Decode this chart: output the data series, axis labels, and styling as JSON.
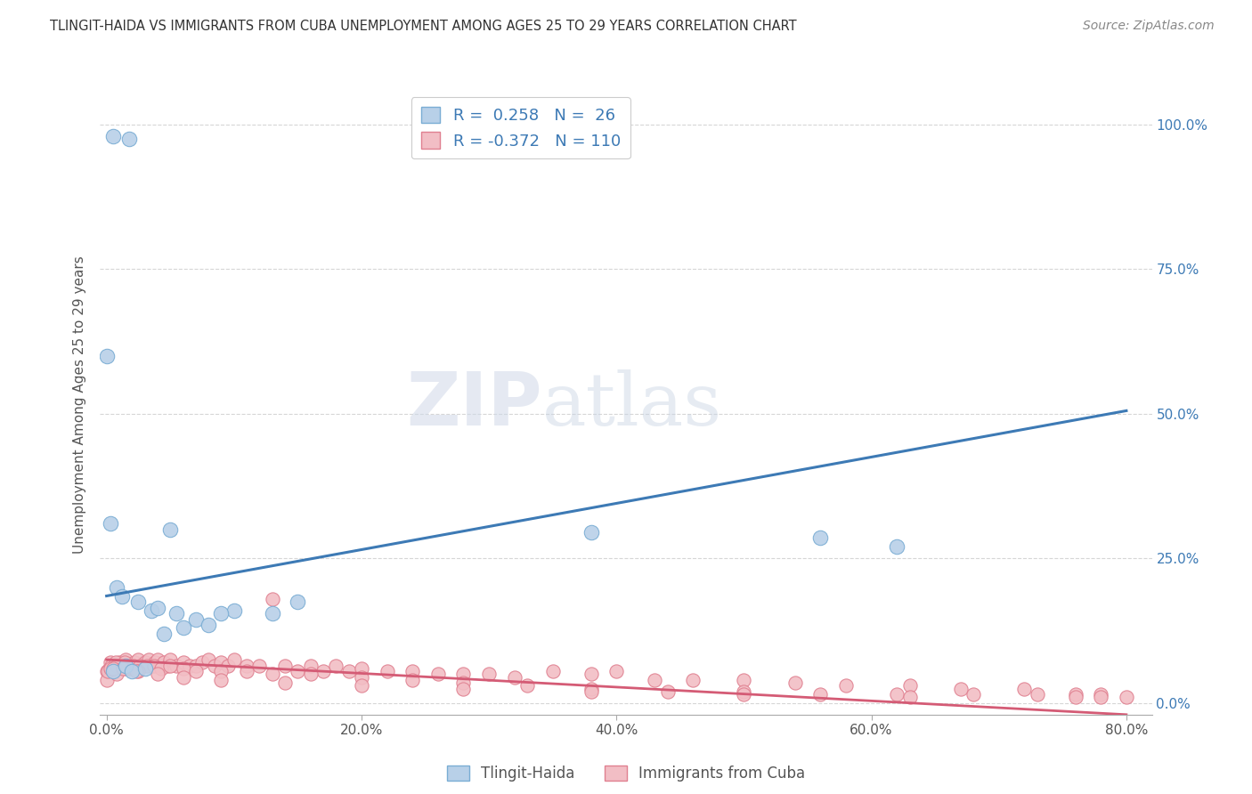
{
  "title": "TLINGIT-HAIDA VS IMMIGRANTS FROM CUBA UNEMPLOYMENT AMONG AGES 25 TO 29 YEARS CORRELATION CHART",
  "source": "Source: ZipAtlas.com",
  "ylabel": "Unemployment Among Ages 25 to 29 years",
  "xlim": [
    -0.005,
    0.82
  ],
  "ylim": [
    -0.02,
    1.05
  ],
  "xticks": [
    0.0,
    0.2,
    0.4,
    0.6,
    0.8
  ],
  "xtick_labels": [
    "0.0%",
    "20.0%",
    "40.0%",
    "60.0%",
    "80.0%"
  ],
  "yticks": [
    0.0,
    0.25,
    0.5,
    0.75,
    1.0
  ],
  "ytick_labels": [
    "0.0%",
    "25.0%",
    "50.0%",
    "75.0%",
    "100.0%"
  ],
  "blue_color": "#b8d0e8",
  "blue_edge_color": "#7aadd4",
  "pink_color": "#f2bec5",
  "pink_edge_color": "#e08090",
  "trend_blue": "#3d7ab5",
  "trend_pink": "#d45b75",
  "R_blue": 0.258,
  "N_blue": 26,
  "R_pink": -0.372,
  "N_pink": 110,
  "legend_label_blue": "Tlingit-Haida",
  "legend_label_pink": "Immigrants from Cuba",
  "blue_trend_x0": 0.0,
  "blue_trend_y0": 0.185,
  "blue_trend_x1": 0.8,
  "blue_trend_y1": 0.505,
  "pink_trend_x0": 0.0,
  "pink_trend_y0": 0.075,
  "pink_trend_x1": 0.8,
  "pink_trend_y1": -0.02,
  "blue_scatter_x": [
    0.005,
    0.018,
    0.0,
    0.003,
    0.008,
    0.012,
    0.025,
    0.035,
    0.04,
    0.055,
    0.07,
    0.08,
    0.1,
    0.13,
    0.15,
    0.05,
    0.09,
    0.38,
    0.56,
    0.62,
    0.005,
    0.015,
    0.02,
    0.03,
    0.045,
    0.06
  ],
  "blue_scatter_y": [
    0.98,
    0.975,
    0.6,
    0.31,
    0.2,
    0.185,
    0.175,
    0.16,
    0.165,
    0.155,
    0.145,
    0.135,
    0.16,
    0.155,
    0.175,
    0.3,
    0.155,
    0.295,
    0.285,
    0.27,
    0.055,
    0.065,
    0.055,
    0.06,
    0.12,
    0.13
  ],
  "pink_scatter_x": [
    0.0,
    0.0,
    0.002,
    0.003,
    0.005,
    0.008,
    0.01,
    0.012,
    0.015,
    0.018,
    0.02,
    0.022,
    0.025,
    0.028,
    0.03,
    0.033,
    0.035,
    0.038,
    0.04,
    0.042,
    0.045,
    0.048,
    0.05,
    0.055,
    0.06,
    0.065,
    0.07,
    0.075,
    0.08,
    0.085,
    0.09,
    0.095,
    0.1,
    0.11,
    0.12,
    0.13,
    0.14,
    0.15,
    0.16,
    0.17,
    0.18,
    0.19,
    0.2,
    0.22,
    0.24,
    0.26,
    0.28,
    0.3,
    0.32,
    0.35,
    0.38,
    0.4,
    0.43,
    0.46,
    0.5,
    0.54,
    0.58,
    0.63,
    0.67,
    0.72,
    0.001,
    0.004,
    0.007,
    0.011,
    0.014,
    0.017,
    0.021,
    0.026,
    0.032,
    0.037,
    0.043,
    0.05,
    0.06,
    0.07,
    0.09,
    0.11,
    0.13,
    0.16,
    0.2,
    0.24,
    0.28,
    0.33,
    0.38,
    0.44,
    0.5,
    0.56,
    0.62,
    0.68,
    0.73,
    0.76,
    0.78,
    0.003,
    0.008,
    0.015,
    0.025,
    0.04,
    0.06,
    0.09,
    0.14,
    0.2,
    0.28,
    0.38,
    0.5,
    0.63,
    0.76,
    0.78,
    0.8,
    0.005,
    0.013,
    0.023
  ],
  "pink_scatter_y": [
    0.055,
    0.04,
    0.06,
    0.07,
    0.055,
    0.05,
    0.07,
    0.065,
    0.075,
    0.06,
    0.065,
    0.07,
    0.075,
    0.065,
    0.07,
    0.075,
    0.065,
    0.07,
    0.075,
    0.065,
    0.07,
    0.065,
    0.075,
    0.065,
    0.07,
    0.065,
    0.065,
    0.07,
    0.075,
    0.065,
    0.07,
    0.065,
    0.075,
    0.065,
    0.065,
    0.18,
    0.065,
    0.055,
    0.065,
    0.055,
    0.065,
    0.055,
    0.06,
    0.055,
    0.055,
    0.05,
    0.05,
    0.05,
    0.045,
    0.055,
    0.05,
    0.055,
    0.04,
    0.04,
    0.04,
    0.035,
    0.03,
    0.03,
    0.025,
    0.025,
    0.055,
    0.065,
    0.07,
    0.065,
    0.07,
    0.065,
    0.065,
    0.065,
    0.065,
    0.065,
    0.06,
    0.065,
    0.06,
    0.055,
    0.055,
    0.055,
    0.05,
    0.05,
    0.045,
    0.04,
    0.035,
    0.03,
    0.025,
    0.02,
    0.02,
    0.015,
    0.015,
    0.015,
    0.015,
    0.015,
    0.015,
    0.06,
    0.065,
    0.06,
    0.055,
    0.05,
    0.045,
    0.04,
    0.035,
    0.03,
    0.025,
    0.02,
    0.015,
    0.01,
    0.01,
    0.01,
    0.01,
    0.06,
    0.06,
    0.055
  ]
}
